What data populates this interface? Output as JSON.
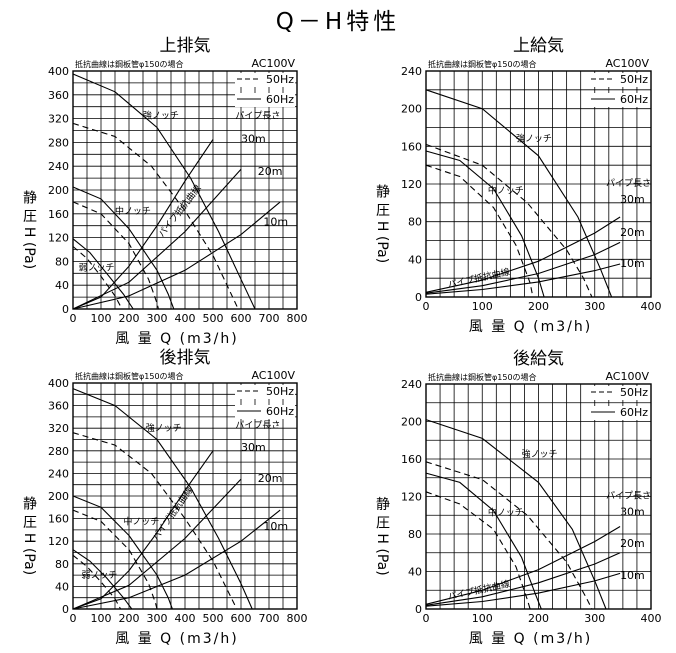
{
  "main_title": "Q－H特性",
  "chart_data": [
    {
      "type": "line",
      "title": "上排気",
      "note": "抵抗曲線は鋼板管φ150の場合",
      "voltage": "AC100V",
      "legend": [
        {
          "name": "50Hz",
          "style": "dashed"
        },
        {
          "name": "60Hz",
          "style": "solid"
        }
      ],
      "xlabel": "風 量 Q (m3/h)",
      "ylabel": "静 圧 H (Pa)",
      "xlim": [
        0,
        800
      ],
      "ylim": [
        0,
        400
      ],
      "xticks": [
        0,
        100,
        200,
        300,
        400,
        500,
        600,
        700,
        800
      ],
      "yticks": [
        0,
        40,
        80,
        120,
        160,
        200,
        240,
        280,
        320,
        360,
        400
      ],
      "grid": true,
      "series": [
        {
          "name": "強ノッチ",
          "style": "solid",
          "points": [
            [
              0,
              395
            ],
            [
              150,
              365
            ],
            [
              300,
              305
            ],
            [
              420,
              220
            ],
            [
              520,
              130
            ],
            [
              600,
              50
            ],
            [
              650,
              0
            ]
          ]
        },
        {
          "name": "強ノッチ",
          "style": "dashed",
          "points": [
            [
              0,
              312
            ],
            [
              150,
              290
            ],
            [
              280,
              240
            ],
            [
              400,
              165
            ],
            [
              500,
              90
            ],
            [
              560,
              30
            ],
            [
              590,
              0
            ]
          ]
        },
        {
          "name": "中ノッチ",
          "style": "solid",
          "points": [
            [
              0,
              205
            ],
            [
              100,
              185
            ],
            [
              200,
              135
            ],
            [
              300,
              65
            ],
            [
              340,
              25
            ],
            [
              360,
              0
            ]
          ]
        },
        {
          "name": "中ノッチ",
          "style": "dashed",
          "points": [
            [
              0,
              180
            ],
            [
              100,
              160
            ],
            [
              200,
              110
            ],
            [
              270,
              50
            ],
            [
              300,
              10
            ],
            [
              305,
              0
            ]
          ]
        },
        {
          "name": "弱ノッチ",
          "style": "solid",
          "points": [
            [
              0,
              118
            ],
            [
              60,
              95
            ],
            [
              120,
              60
            ],
            [
              180,
              25
            ],
            [
              215,
              0
            ]
          ]
        },
        {
          "name": "弱ノッチ",
          "style": "dashed",
          "points": [
            [
              0,
              105
            ],
            [
              50,
              85
            ],
            [
              100,
              55
            ],
            [
              150,
              22
            ],
            [
              175,
              0
            ]
          ]
        },
        {
          "name": "30m",
          "style": "solid",
          "points": [
            [
              0,
              0
            ],
            [
              100,
              20
            ],
            [
              200,
              72
            ],
            [
              300,
              140
            ],
            [
              400,
              215
            ],
            [
              500,
              285
            ]
          ]
        },
        {
          "name": "20m",
          "style": "solid",
          "points": [
            [
              0,
              0
            ],
            [
              200,
              45
            ],
            [
              400,
              130
            ],
            [
              600,
              235
            ]
          ]
        },
        {
          "name": "10m",
          "style": "solid",
          "points": [
            [
              0,
              0
            ],
            [
              200,
              22
            ],
            [
              400,
              65
            ],
            [
              600,
              125
            ],
            [
              740,
              180
            ]
          ]
        }
      ],
      "labels": {
        "strong": "強ノッチ",
        "medium": "中ノッチ",
        "weak": "弱ノッチ",
        "pipe_length": "パイプ長さ",
        "pipe_curve": "パイプ抵抗曲線",
        "m30": "30m",
        "m20": "20m",
        "m10": "10m"
      }
    },
    {
      "type": "line",
      "title": "上給気",
      "note": "抵抗曲線は鋼板管φ150の場合",
      "voltage": "AC100V",
      "legend": [
        {
          "name": "50Hz",
          "style": "dashed"
        },
        {
          "name": "60Hz",
          "style": "solid"
        }
      ],
      "xlabel": "風 量 Q (m3/h)",
      "ylabel": "静 圧 H (Pa)",
      "xlim": [
        0,
        400
      ],
      "ylim": [
        0,
        240
      ],
      "xticks": [
        0,
        100,
        200,
        300,
        400
      ],
      "yticks": [
        0,
        40,
        80,
        120,
        160,
        200,
        240
      ],
      "grid": true,
      "series": [
        {
          "name": "強ノッチ",
          "style": "solid",
          "points": [
            [
              0,
              220
            ],
            [
              100,
              200
            ],
            [
              200,
              150
            ],
            [
              270,
              85
            ],
            [
              310,
              30
            ],
            [
              330,
              0
            ]
          ]
        },
        {
          "name": "強ノッチ",
          "style": "dashed",
          "points": [
            [
              0,
              162
            ],
            [
              100,
              140
            ],
            [
              180,
              100
            ],
            [
              250,
              50
            ],
            [
              280,
              20
            ],
            [
              295,
              0
            ]
          ]
        },
        {
          "name": "中ノッチ",
          "style": "solid",
          "points": [
            [
              0,
              155
            ],
            [
              60,
              145
            ],
            [
              120,
              115
            ],
            [
              170,
              65
            ],
            [
              200,
              20
            ],
            [
              210,
              0
            ]
          ]
        },
        {
          "name": "中ノッチ",
          "style": "dashed",
          "points": [
            [
              0,
              140
            ],
            [
              60,
              128
            ],
            [
              120,
              95
            ],
            [
              160,
              55
            ],
            [
              185,
              15
            ],
            [
              190,
              0
            ]
          ]
        },
        {
          "name": "30m",
          "style": "solid",
          "points": [
            [
              0,
              5
            ],
            [
              100,
              18
            ],
            [
              200,
              38
            ],
            [
              300,
              68
            ],
            [
              345,
              85
            ]
          ]
        },
        {
          "name": "20m",
          "style": "solid",
          "points": [
            [
              0,
              4
            ],
            [
              100,
              12
            ],
            [
              200,
              25
            ],
            [
              300,
              45
            ],
            [
              345,
              58
            ]
          ]
        },
        {
          "name": "10m",
          "style": "solid",
          "points": [
            [
              0,
              3
            ],
            [
              100,
              8
            ],
            [
              200,
              16
            ],
            [
              300,
              28
            ],
            [
              345,
              35
            ]
          ]
        }
      ],
      "labels": {
        "strong": "強ノッチ",
        "medium": "中ノッチ",
        "pipe_length": "パイプ長さ",
        "pipe_curve": "パイプ抵抗曲線",
        "m30": "30m",
        "m20": "20m",
        "m10": "10m"
      }
    },
    {
      "type": "line",
      "title": "後排気",
      "note": "抵抗曲線は鋼板管φ150の場合",
      "voltage": "AC100V",
      "legend": [
        {
          "name": "50Hz",
          "style": "dashed"
        },
        {
          "name": "60Hz",
          "style": "solid"
        }
      ],
      "xlabel": "風 量 Q (m3/h)",
      "ylabel": "静 圧 H (Pa)",
      "xlim": [
        0,
        800
      ],
      "ylim": [
        0,
        400
      ],
      "xticks": [
        0,
        100,
        200,
        300,
        400,
        500,
        600,
        700,
        800
      ],
      "yticks": [
        0,
        40,
        80,
        120,
        160,
        200,
        240,
        280,
        320,
        360,
        400
      ],
      "grid": true,
      "series": [
        {
          "name": "強ノッチ",
          "style": "solid",
          "points": [
            [
              0,
              390
            ],
            [
              150,
              360
            ],
            [
              300,
              300
            ],
            [
              420,
              215
            ],
            [
              520,
              125
            ],
            [
              600,
              45
            ],
            [
              640,
              0
            ]
          ]
        },
        {
          "name": "強ノッチ",
          "style": "dashed",
          "points": [
            [
              0,
              312
            ],
            [
              150,
              290
            ],
            [
              280,
              240
            ],
            [
              400,
              160
            ],
            [
              500,
              85
            ],
            [
              560,
              25
            ],
            [
              585,
              0
            ]
          ]
        },
        {
          "name": "中ノッチ",
          "style": "solid",
          "points": [
            [
              0,
              200
            ],
            [
              100,
              180
            ],
            [
              200,
              130
            ],
            [
              300,
              60
            ],
            [
              340,
              20
            ],
            [
              355,
              0
            ]
          ]
        },
        {
          "name": "中ノッチ",
          "style": "dashed",
          "points": [
            [
              0,
              175
            ],
            [
              100,
              155
            ],
            [
              200,
              105
            ],
            [
              270,
              45
            ],
            [
              295,
              10
            ],
            [
              300,
              0
            ]
          ]
        },
        {
          "name": "弱ノッチ",
          "style": "solid",
          "points": [
            [
              0,
              105
            ],
            [
              60,
              85
            ],
            [
              120,
              55
            ],
            [
              180,
              20
            ],
            [
              210,
              0
            ]
          ]
        },
        {
          "name": "弱ノッチ",
          "style": "dashed",
          "points": [
            [
              0,
              95
            ],
            [
              50,
              75
            ],
            [
              100,
              48
            ],
            [
              150,
              18
            ],
            [
              170,
              0
            ]
          ]
        },
        {
          "name": "30m",
          "style": "solid",
          "points": [
            [
              0,
              0
            ],
            [
              100,
              18
            ],
            [
              200,
              68
            ],
            [
              300,
              135
            ],
            [
              400,
              210
            ],
            [
              500,
              280
            ]
          ]
        },
        {
          "name": "20m",
          "style": "solid",
          "points": [
            [
              0,
              0
            ],
            [
              200,
              42
            ],
            [
              400,
              125
            ],
            [
              600,
              230
            ]
          ]
        },
        {
          "name": "10m",
          "style": "solid",
          "points": [
            [
              0,
              0
            ],
            [
              200,
              20
            ],
            [
              400,
              60
            ],
            [
              600,
              120
            ],
            [
              740,
              175
            ]
          ]
        }
      ],
      "labels": {
        "strong": "強ノッチ",
        "medium": "中ノッチ",
        "weak": "弱ノッチ",
        "pipe_length": "パイプ長さ",
        "pipe_curve": "パイプ抵抗曲線",
        "m30": "30m",
        "m20": "20m",
        "m10": "10m"
      }
    },
    {
      "type": "line",
      "title": "後給気",
      "note": "抵抗曲線は鋼板管φ150の場合",
      "voltage": "AC100V",
      "legend": [
        {
          "name": "50Hz",
          "style": "dashed"
        },
        {
          "name": "60Hz",
          "style": "solid"
        }
      ],
      "xlabel": "風 量 Q (m3/h)",
      "ylabel": "静 圧 H (Pa)",
      "xlim": [
        0,
        400
      ],
      "ylim": [
        0,
        240
      ],
      "xticks": [
        0,
        100,
        200,
        300,
        400
      ],
      "yticks": [
        0,
        40,
        80,
        120,
        160,
        200,
        240
      ],
      "grid": true,
      "series": [
        {
          "name": "強ノッチ",
          "style": "solid",
          "points": [
            [
              0,
              202
            ],
            [
              100,
              182
            ],
            [
              200,
              135
            ],
            [
              260,
              85
            ],
            [
              300,
              30
            ],
            [
              320,
              0
            ]
          ]
        },
        {
          "name": "強ノッチ",
          "style": "dashed",
          "points": [
            [
              0,
              157
            ],
            [
              100,
              138
            ],
            [
              180,
              100
            ],
            [
              250,
              50
            ],
            [
              285,
              12
            ],
            [
              295,
              0
            ]
          ]
        },
        {
          "name": "中ノッチ",
          "style": "solid",
          "points": [
            [
              0,
              145
            ],
            [
              60,
              135
            ],
            [
              120,
              105
            ],
            [
              170,
              55
            ],
            [
              195,
              15
            ],
            [
              205,
              0
            ]
          ]
        },
        {
          "name": "中ノッチ",
          "style": "dashed",
          "points": [
            [
              0,
              125
            ],
            [
              60,
              112
            ],
            [
              120,
              85
            ],
            [
              160,
              45
            ],
            [
              180,
              10
            ],
            [
              185,
              0
            ]
          ]
        },
        {
          "name": "30m",
          "style": "solid",
          "points": [
            [
              0,
              5
            ],
            [
              100,
              20
            ],
            [
              200,
              42
            ],
            [
              300,
              72
            ],
            [
              345,
              88
            ]
          ]
        },
        {
          "name": "20m",
          "style": "solid",
          "points": [
            [
              0,
              4
            ],
            [
              100,
              13
            ],
            [
              200,
              28
            ],
            [
              300,
              48
            ],
            [
              345,
              60
            ]
          ]
        },
        {
          "name": "10m",
          "style": "solid",
          "points": [
            [
              0,
              3
            ],
            [
              100,
              8
            ],
            [
              200,
              17
            ],
            [
              300,
              30
            ],
            [
              345,
              38
            ]
          ]
        }
      ],
      "labels": {
        "strong": "強ノッチ",
        "medium": "中ノッチ",
        "pipe_length": "パイプ長さ",
        "pipe_curve": "パイプ抵抗曲線",
        "m30": "30m",
        "m20": "20m",
        "m10": "10m"
      }
    }
  ]
}
